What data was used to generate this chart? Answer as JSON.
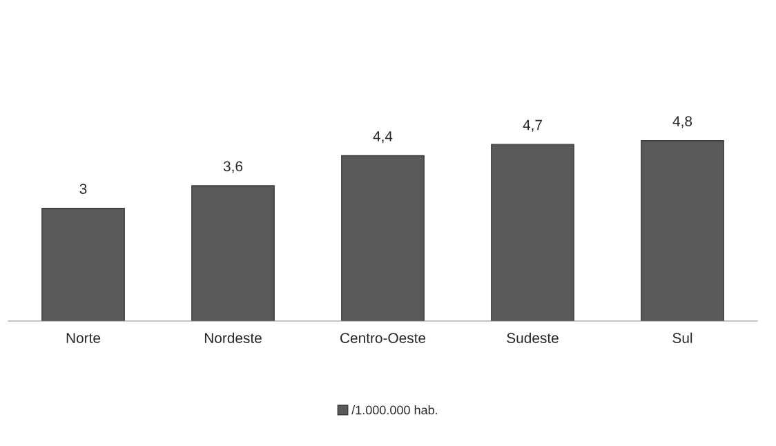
{
  "chart_data": {
    "type": "bar",
    "categories": [
      "Norte",
      "Nordeste",
      "Centro-Oeste",
      "Sudeste",
      "Sul"
    ],
    "series": [
      {
        "name": "/1.000.000 hab.",
        "color": "#595959",
        "values": [
          3,
          3.6,
          4.4,
          4.7,
          4.8
        ],
        "value_labels": [
          "3",
          "3,6",
          "4,4",
          "4,7",
          "4,8"
        ]
      }
    ],
    "legend": "bottom",
    "grid": false
  }
}
